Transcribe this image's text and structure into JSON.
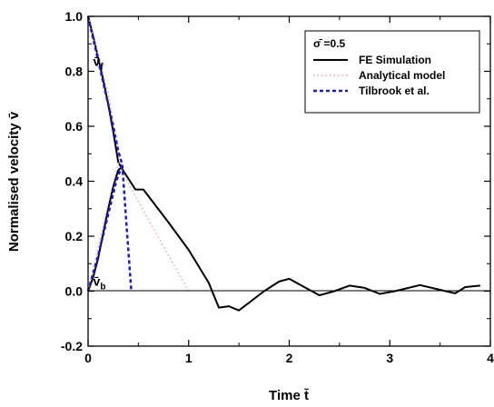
{
  "chart_data": {
    "type": "line",
    "xlabel": "Time t̄",
    "ylabel": "Normalised velocity v̄",
    "xlim": [
      0,
      4
    ],
    "ylim": [
      -0.2,
      1.0
    ],
    "x_ticks": [
      "0",
      "1",
      "2",
      "3",
      "4"
    ],
    "y_ticks": [
      "-0.2",
      "0.0",
      "0.2",
      "0.4",
      "0.6",
      "0.8",
      "1.0"
    ],
    "grid": false,
    "legend_position": "top-right",
    "legend_title": "σ̄ =0.5",
    "annotations": [
      {
        "text": "v̄",
        "sub": "f",
        "x": 0.05,
        "y": 0.82
      },
      {
        "text": "v̄",
        "sub": "b",
        "x": 0.05,
        "y": 0.02
      }
    ],
    "series": [
      {
        "name": "FE Simulation",
        "style": "solid",
        "color": "#000000",
        "points": [
          [
            0.0,
            1.0
          ],
          [
            0.05,
            0.93
          ],
          [
            0.1,
            0.85
          ],
          [
            0.15,
            0.77
          ],
          [
            0.2,
            0.68
          ],
          [
            0.25,
            0.58
          ],
          [
            0.3,
            0.47
          ],
          [
            0.33,
            0.45
          ],
          [
            0.4,
            0.41
          ],
          [
            0.47,
            0.37
          ],
          [
            0.55,
            0.37
          ],
          [
            0.8,
            0.25
          ],
          [
            1.0,
            0.15
          ],
          [
            1.2,
            0.03
          ],
          [
            1.3,
            -0.06
          ],
          [
            1.4,
            -0.055
          ],
          [
            1.5,
            -0.07
          ],
          [
            1.75,
            0.0
          ],
          [
            1.9,
            0.035
          ],
          [
            2.0,
            0.045
          ],
          [
            2.15,
            0.015
          ],
          [
            2.3,
            -0.015
          ],
          [
            2.45,
            0.0
          ],
          [
            2.6,
            0.02
          ],
          [
            2.75,
            0.012
          ],
          [
            2.9,
            -0.01
          ],
          [
            3.05,
            0.0
          ],
          [
            3.3,
            0.022
          ],
          [
            3.5,
            0.005
          ],
          [
            3.65,
            -0.008
          ],
          [
            3.75,
            0.015
          ],
          [
            3.9,
            0.02
          ]
        ],
        "points2": [
          [
            0.0,
            0.0
          ],
          [
            0.05,
            0.05
          ],
          [
            0.1,
            0.12
          ],
          [
            0.15,
            0.21
          ],
          [
            0.2,
            0.3
          ],
          [
            0.25,
            0.38
          ],
          [
            0.3,
            0.44
          ],
          [
            0.33,
            0.45
          ]
        ]
      },
      {
        "name": "Analytical model",
        "style": "dotted",
        "color": "#f4a0a0",
        "points": [
          [
            0.0,
            1.0
          ],
          [
            0.1,
            0.86
          ],
          [
            0.2,
            0.72
          ],
          [
            0.28,
            0.56
          ],
          [
            0.32,
            0.48
          ],
          [
            0.36,
            0.42
          ],
          [
            0.6,
            0.26
          ],
          [
            0.8,
            0.13
          ],
          [
            1.0,
            0.0
          ]
        ],
        "points2": [
          [
            0.0,
            0.0
          ],
          [
            0.1,
            0.16
          ],
          [
            0.2,
            0.32
          ],
          [
            0.28,
            0.44
          ],
          [
            0.32,
            0.48
          ]
        ]
      },
      {
        "name": "Tilbrook et al.",
        "style": "dashed",
        "color": "#1a1acc",
        "points": [
          [
            0.0,
            1.0
          ],
          [
            0.05,
            0.92
          ],
          [
            0.1,
            0.84
          ],
          [
            0.15,
            0.76
          ],
          [
            0.2,
            0.68
          ],
          [
            0.25,
            0.6
          ],
          [
            0.3,
            0.51
          ],
          [
            0.34,
            0.46
          ],
          [
            0.38,
            0.25
          ],
          [
            0.43,
            0.0
          ]
        ],
        "points2": [
          [
            0.0,
            0.0
          ],
          [
            0.1,
            0.13
          ],
          [
            0.2,
            0.28
          ],
          [
            0.28,
            0.4
          ],
          [
            0.34,
            0.46
          ]
        ]
      }
    ]
  }
}
